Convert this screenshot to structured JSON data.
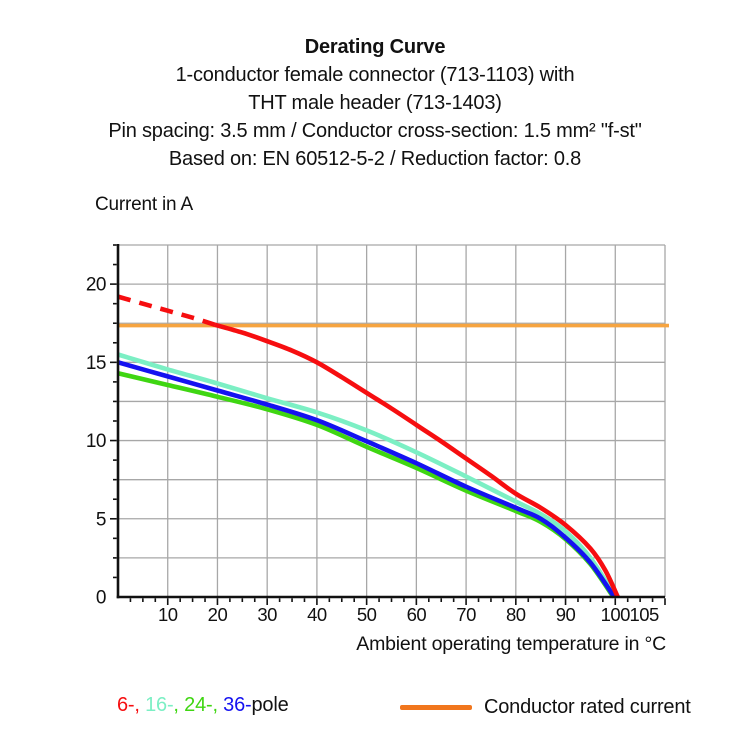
{
  "title": {
    "line1": "Derating Curve",
    "line2": "1-conductor female connector (713-1103) with",
    "line3": "THT male header (713-1403)",
    "line4": "Pin spacing: 3.5 mm / Conductor cross-section: 1.5 mm² \"f-st\"",
    "line5": "Based on: EN 60512-5-2 / Reduction factor: 0.8"
  },
  "chart_data": {
    "type": "line",
    "title": "Derating Curve",
    "ylabel": "Current in A",
    "xlabel": "Ambient operating temperature in °C",
    "x_axis": {
      "range": [
        0,
        110
      ],
      "major_tick_step": 10,
      "minor_tick_step": 2.5,
      "tick_labels": [
        10,
        20,
        30,
        40,
        50,
        60,
        70,
        80,
        90,
        100,
        105
      ]
    },
    "y_axis": {
      "range": [
        0,
        22.5
      ],
      "gridline_step": 2.5,
      "minor_tick_step": 1.25,
      "tick_labels": [
        0,
        5,
        10,
        15,
        20
      ]
    },
    "grid": {
      "color": "#A7A7A7",
      "axis_color": "#111111",
      "background": "#ffffff"
    },
    "rated_current": {
      "name": "Conductor rated current",
      "value": 17.35,
      "color": "#F6A440"
    },
    "series": [
      {
        "name": "6-pole",
        "color": "#F60E10",
        "z": 4,
        "dash_until": 19.5,
        "points": [
          [
            0,
            19.2
          ],
          [
            5,
            18.75
          ],
          [
            10,
            18.3
          ],
          [
            15,
            17.85
          ],
          [
            19.5,
            17.4
          ],
          [
            25,
            16.9
          ],
          [
            30,
            16.35
          ],
          [
            35,
            15.75
          ],
          [
            40,
            15.0
          ],
          [
            45,
            14.05
          ],
          [
            50,
            13.05
          ],
          [
            55,
            12.05
          ],
          [
            60,
            11.0
          ],
          [
            65,
            9.95
          ],
          [
            70,
            8.85
          ],
          [
            75,
            7.75
          ],
          [
            80,
            6.6
          ],
          [
            85,
            5.7
          ],
          [
            90,
            4.6
          ],
          [
            95,
            3.1
          ],
          [
            98,
            1.7
          ],
          [
            100.5,
            0
          ]
        ]
      },
      {
        "name": "16-pole",
        "color": "#7CEFC4",
        "z": 2,
        "points": [
          [
            0,
            15.5
          ],
          [
            10,
            14.55
          ],
          [
            20,
            13.65
          ],
          [
            30,
            12.7
          ],
          [
            40,
            11.8
          ],
          [
            50,
            10.65
          ],
          [
            60,
            9.25
          ],
          [
            70,
            7.7
          ],
          [
            80,
            6.1
          ],
          [
            85,
            5.3
          ],
          [
            90,
            4.2
          ],
          [
            95,
            2.5
          ],
          [
            100,
            0
          ]
        ]
      },
      {
        "name": "24-pole",
        "color": "#3FD612",
        "z": 1,
        "points": [
          [
            0,
            14.3
          ],
          [
            10,
            13.55
          ],
          [
            20,
            12.8
          ],
          [
            30,
            12.0
          ],
          [
            40,
            11.0
          ],
          [
            50,
            9.6
          ],
          [
            60,
            8.25
          ],
          [
            70,
            6.8
          ],
          [
            80,
            5.5
          ],
          [
            85,
            4.8
          ],
          [
            90,
            3.7
          ],
          [
            95,
            2.1
          ],
          [
            99.6,
            0
          ]
        ]
      },
      {
        "name": "36-pole",
        "color": "#1512F0",
        "z": 3,
        "points": [
          [
            0,
            15.0
          ],
          [
            10,
            14.1
          ],
          [
            20,
            13.2
          ],
          [
            30,
            12.3
          ],
          [
            40,
            11.3
          ],
          [
            50,
            9.95
          ],
          [
            60,
            8.55
          ],
          [
            70,
            7.05
          ],
          [
            80,
            5.7
          ],
          [
            85,
            5.0
          ],
          [
            90,
            3.8
          ],
          [
            95,
            2.2
          ],
          [
            99.8,
            0
          ]
        ]
      }
    ]
  },
  "axis_titles": {
    "y": "Current in A",
    "x": "Ambient operating temperature in °C"
  },
  "legend": {
    "pole_segments": [
      {
        "text": "6-,",
        "color": "#F60E10"
      },
      {
        "text": " ",
        "color": "#111111"
      },
      {
        "text": "16-",
        "color": "#7CEFC4"
      },
      {
        "text": ", ",
        "color": "#3FD612"
      },
      {
        "text": "24-,",
        "color": "#3FD612"
      },
      {
        "text": " ",
        "color": "#111111"
      },
      {
        "text": "36-",
        "color": "#1512F0"
      },
      {
        "text": "pole",
        "color": "#111111"
      }
    ],
    "rated": {
      "label": "Conductor rated current",
      "color": "#F1761D"
    }
  }
}
